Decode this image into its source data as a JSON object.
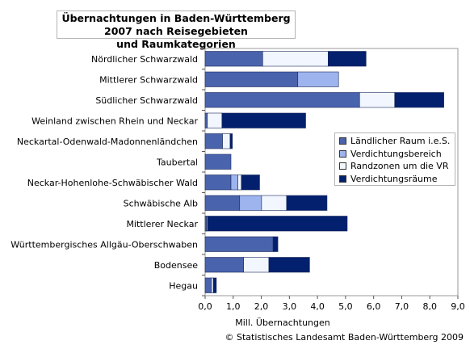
{
  "chart_data": {
    "type": "bar",
    "orientation": "horizontal",
    "stacked": true,
    "title_line1": "Übernachtungen in Baden-Württemberg 2007 nach Reisegebieten",
    "title_line2": "und Raumkategorien",
    "xlabel": "Mill. Übernachtungen",
    "xlim": [
      0,
      9.0
    ],
    "xticks": [
      "0,0",
      "1,0",
      "2,0",
      "3,0",
      "4,0",
      "5,0",
      "6,0",
      "7,0",
      "8,0",
      "9,0"
    ],
    "grid": false,
    "legend_position": "right",
    "categories": [
      "Nördlicher Schwarzwald",
      "Mittlerer Schwarzwald",
      "Südlicher Schwarzwald",
      "Weinland zwischen Rhein und Neckar",
      "Neckartal-Odenwald-Madonnenländchen",
      "Taubertal",
      "Neckar-Hohenlohe-Schwäbischer Wald",
      "Schwäbische Alb",
      "Mittlerer Neckar",
      "Württembergisches Allgäu-Oberschwaben",
      "Bodensee",
      "Hegau"
    ],
    "series": [
      {
        "name": "Ländlicher Raum i.e.S.",
        "color": "#4a63ad",
        "values": [
          2.05,
          3.3,
          5.5,
          0.08,
          0.62,
          0.92,
          0.92,
          1.23,
          0.05,
          2.42,
          1.37,
          0.22
        ]
      },
      {
        "name": "Verdichtungsbereich",
        "color": "#9eb4ee",
        "values": [
          0.0,
          1.45,
          0.0,
          0.0,
          0.0,
          0.0,
          0.25,
          0.78,
          0.0,
          0.0,
          0.0,
          0.0
        ]
      },
      {
        "name": "Randzonen um die VR",
        "color": "#f2f6ff",
        "values": [
          2.33,
          0.0,
          1.25,
          0.52,
          0.27,
          0.0,
          0.12,
          0.89,
          0.03,
          0.0,
          0.9,
          0.07
        ]
      },
      {
        "name": "Verdichtungsräume",
        "color": "#03206e",
        "values": [
          1.35,
          0.0,
          1.75,
          2.98,
          0.08,
          0.0,
          0.65,
          1.44,
          4.98,
          0.17,
          1.45,
          0.11
        ]
      }
    ]
  },
  "source": "© Statistisches Landesamt Baden-Württemberg 2009"
}
